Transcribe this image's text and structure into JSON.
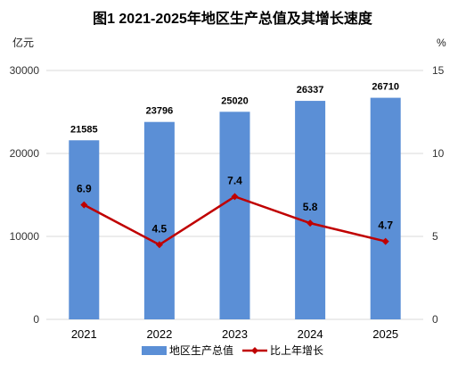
{
  "chart_data": {
    "type": "bar",
    "title": "图1  2021-2025年地区生产总值及其增长速度",
    "left_unit": "亿元",
    "right_unit": "%",
    "categories": [
      "2021",
      "2022",
      "2023",
      "2024",
      "2025"
    ],
    "series": [
      {
        "name": "地区生产总值",
        "type": "bar",
        "axis": "left",
        "color": "#5b8fd6",
        "values": [
          21585,
          23796,
          25020,
          26337,
          26710
        ]
      },
      {
        "name": "比上年增长",
        "type": "line",
        "axis": "right",
        "color": "#c00000",
        "values": [
          6.9,
          4.5,
          7.4,
          5.8,
          4.7
        ]
      }
    ],
    "ylim_left": [
      0,
      30000
    ],
    "yticks_left": [
      0,
      10000,
      20000,
      30000
    ],
    "ylim_right": [
      0,
      15
    ],
    "yticks_right": [
      0,
      5,
      10,
      15
    ],
    "grid": true,
    "legend_position": "bottom"
  }
}
